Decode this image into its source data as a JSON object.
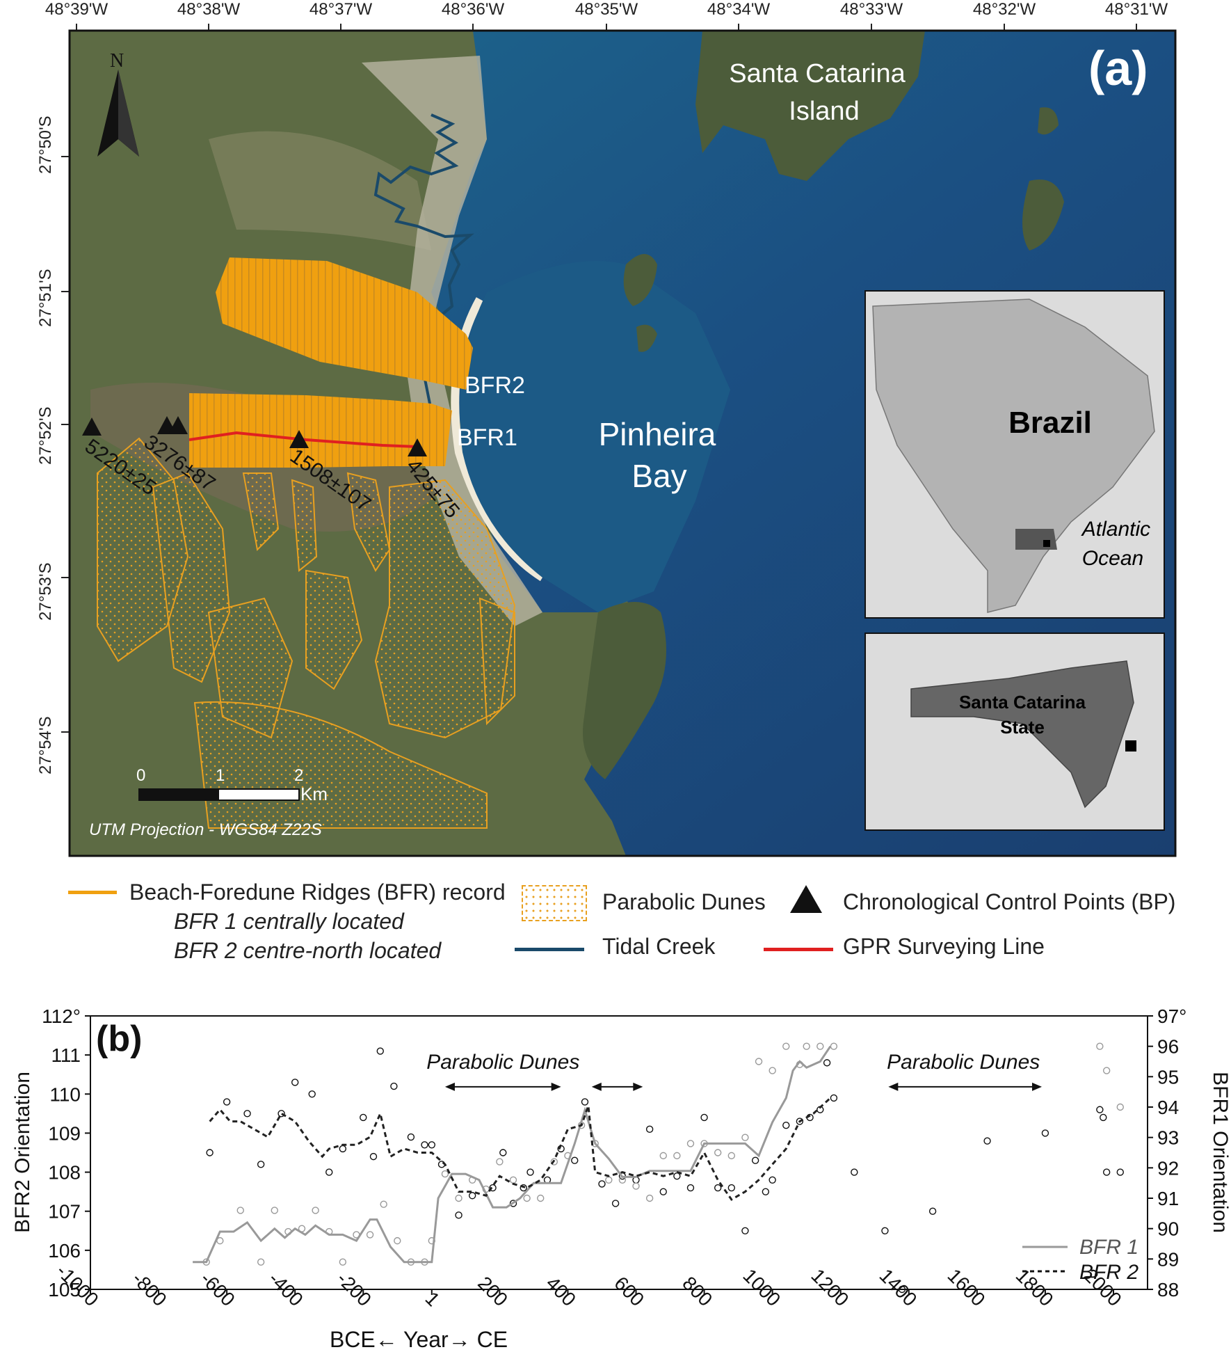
{
  "map": {
    "panel_label": "(a)",
    "lon_ticks": [
      "48°39'W",
      "48°38'W",
      "48°37'W",
      "48°36'W",
      "48°35'W",
      "48°34'W",
      "48°33'W",
      "48°32'W",
      "48°31'W"
    ],
    "lat_ticks": [
      "27°50'S",
      "27°51'S",
      "27°52'S",
      "27°53'S",
      "27°54'S"
    ],
    "north_label": "N",
    "place_labels": {
      "island_line1": "Santa Catarina",
      "island_line2": "Island",
      "bay_line1": "Pinheira",
      "bay_line2": "Bay",
      "bfr2": "BFR2",
      "bfr1": "BFR1"
    },
    "control_points": [
      "5220±25",
      "3276±87",
      "1508±107",
      "425±75"
    ],
    "scale": {
      "ticks": [
        "0",
        "1",
        "2"
      ],
      "unit": "Km"
    },
    "projection": "UTM Projection - WGS84 Z22S",
    "inset_brazil": {
      "country": "Brazil",
      "ocean_line1": "Atlantic",
      "ocean_line2": "Ocean"
    },
    "inset_state": {
      "line1": "Santa Catarina",
      "line2": "State"
    },
    "colors": {
      "ridges": "#f0a010",
      "creek": "#1a4a6a",
      "gpr": "#e02020",
      "sea": "#1d4f80"
    }
  },
  "legend": {
    "bfr_record": "Beach-Foredune Ridges (BFR) record",
    "bfr1_note": "BFR 1 centrally located",
    "bfr2_note": "BFR 2 centre-north located",
    "parabolic": "Parabolic Dunes",
    "tidal": "Tidal Creek",
    "control": "Chronological Control Points (BP)",
    "gpr": "GPR Surveying Line"
  },
  "chart_data": {
    "type": "line",
    "panel_label": "(b)",
    "xlabel": "BCE← Year→ CE",
    "ylabel_left": "BFR2 Orientation",
    "ylabel_right": "BFR1 Orientation",
    "x_ticks": [
      "-1000",
      "-800",
      "-600",
      "-400",
      "-200",
      "1",
      "200",
      "400",
      "600",
      "800",
      "1000",
      "1200",
      "1400",
      "1600",
      "1800",
      "2000"
    ],
    "y_left_ticks": [
      "105",
      "106",
      "107",
      "108",
      "109",
      "110",
      "111",
      "112°"
    ],
    "y_right_ticks": [
      "88",
      "89",
      "90",
      "91",
      "92",
      "93",
      "94",
      "95",
      "96",
      "97°"
    ],
    "xlim": [
      -1000,
      2100
    ],
    "ylim_left": [
      105,
      112
    ],
    "ylim_right": [
      88,
      97
    ],
    "annotations": [
      {
        "text": "Parabolic Dunes",
        "x": 210,
        "x_from": 40,
        "x_to": 380,
        "y": 110.4
      },
      {
        "text": "Parabolic Dunes",
        "x": 1560,
        "x_from": 1340,
        "x_to": 1790,
        "y": 110.4
      }
    ],
    "arrow2": {
      "x_from": 470,
      "x_to": 620,
      "y": 110.4
    },
    "series": [
      {
        "name": "BFR 1",
        "axis": "right",
        "style": "solid",
        "color": "#999999",
        "x": [
          -700,
          -660,
          -620,
          -580,
          -540,
          -500,
          -460,
          -430,
          -400,
          -370,
          -340,
          -300,
          -260,
          -220,
          -180,
          -160,
          -120,
          -80,
          -40,
          1,
          20,
          60,
          100,
          140,
          180,
          220,
          260,
          300,
          340,
          380,
          420,
          450,
          480,
          520,
          560,
          600,
          640,
          680,
          720,
          760,
          800,
          840,
          880,
          920,
          960,
          1000,
          1040,
          1060,
          1080,
          1100,
          1140,
          1170
        ],
        "y": [
          88.9,
          88.9,
          89.9,
          89.9,
          90.2,
          89.6,
          90.0,
          89.7,
          90.0,
          89.8,
          90.1,
          89.8,
          89.8,
          89.6,
          90.3,
          90.3,
          89.4,
          88.9,
          88.9,
          88.9,
          91.0,
          91.8,
          91.8,
          91.6,
          90.7,
          90.7,
          91.0,
          91.5,
          91.5,
          91.5,
          92.8,
          93.9,
          92.8,
          92.3,
          91.7,
          91.7,
          91.9,
          91.9,
          91.9,
          91.9,
          92.8,
          92.8,
          92.8,
          92.8,
          92.4,
          93.5,
          94.3,
          95.2,
          95.5,
          95.3,
          95.5,
          96.0
        ]
      },
      {
        "name": "BFR 2",
        "axis": "left",
        "style": "dashed",
        "color": "#222222",
        "x": [
          -650,
          -620,
          -590,
          -560,
          -520,
          -480,
          -440,
          -400,
          -360,
          -320,
          -300,
          -260,
          -220,
          -180,
          -150,
          -120,
          -80,
          -40,
          1,
          40,
          80,
          120,
          160,
          200,
          240,
          280,
          320,
          360,
          400,
          440,
          460,
          480,
          520,
          560,
          600,
          640,
          680,
          720,
          760,
          800,
          840,
          880,
          920,
          960,
          1000,
          1040,
          1080,
          1120,
          1170
        ],
        "y": [
          109.3,
          109.6,
          109.3,
          109.3,
          109.1,
          108.9,
          109.5,
          109.3,
          108.8,
          108.4,
          108.6,
          108.7,
          108.7,
          108.9,
          109.5,
          108.4,
          108.6,
          108.5,
          108.5,
          108.2,
          107.5,
          107.5,
          107.4,
          107.9,
          107.7,
          107.6,
          107.8,
          108.3,
          109.1,
          109.2,
          109.7,
          108.0,
          107.9,
          108.0,
          107.9,
          108.0,
          107.9,
          108.0,
          107.9,
          108.5,
          107.8,
          107.3,
          107.5,
          107.8,
          108.2,
          108.6,
          109.3,
          109.5,
          109.9
        ]
      }
    ],
    "scatter_bfr2": {
      "axis": "left",
      "x": [
        -650,
        -600,
        -540,
        -500,
        -440,
        -400,
        -350,
        -300,
        -260,
        -200,
        -170,
        -150,
        -110,
        -60,
        -20,
        1,
        30,
        80,
        120,
        180,
        210,
        240,
        270,
        290,
        340,
        380,
        420,
        450,
        500,
        540,
        560,
        600,
        640,
        680,
        720,
        760,
        800,
        840,
        880,
        920,
        950,
        980,
        1000,
        1040,
        1080,
        1110,
        1140,
        1160,
        1180,
        1240,
        1330,
        1470,
        1630,
        1800,
        1960,
        1970,
        1980,
        2020,
        1380
      ],
      "y": [
        108.5,
        109.8,
        109.5,
        108.2,
        109.5,
        110.3,
        110.0,
        108.0,
        108.6,
        109.4,
        108.4,
        111.1,
        110.2,
        108.9,
        108.7,
        108.7,
        108.2,
        106.9,
        107.4,
        107.6,
        108.5,
        107.2,
        107.6,
        108.0,
        107.8,
        108.6,
        108.3,
        109.8,
        107.7,
        107.2,
        107.9,
        107.8,
        109.1,
        107.5,
        107.9,
        107.6,
        109.4,
        107.6,
        107.6,
        106.5,
        108.3,
        107.5,
        107.8,
        109.2,
        109.3,
        109.4,
        109.6,
        110.8,
        109.9,
        108.0,
        106.5,
        107.0,
        108.8,
        109.0,
        109.6,
        109.4,
        108.0,
        108.0,
        105.0
      ]
    },
    "scatter_bfr1": {
      "axis": "right",
      "x": [
        -660,
        -620,
        -560,
        -500,
        -460,
        -420,
        -380,
        -340,
        -300,
        -260,
        -220,
        -180,
        -140,
        -100,
        -60,
        -20,
        1,
        40,
        80,
        120,
        160,
        200,
        240,
        280,
        320,
        360,
        400,
        440,
        480,
        520,
        560,
        600,
        640,
        680,
        720,
        760,
        800,
        840,
        880,
        920,
        960,
        1000,
        1040,
        1080,
        1100,
        1140,
        1180,
        1960,
        1980,
        2020
      ],
      "y": [
        88.9,
        89.6,
        90.6,
        88.9,
        90.6,
        89.9,
        90.0,
        90.6,
        89.9,
        88.9,
        89.8,
        89.8,
        90.8,
        89.6,
        88.9,
        88.9,
        89.6,
        91.8,
        91.0,
        91.6,
        91.3,
        92.2,
        91.6,
        91.0,
        91.0,
        92.2,
        92.4,
        93.4,
        92.8,
        91.6,
        91.6,
        91.4,
        91.0,
        92.4,
        92.4,
        92.8,
        92.8,
        92.5,
        92.4,
        93.0,
        95.5,
        95.2,
        96.0,
        95.4,
        96.0,
        96.0,
        96.0,
        96.0,
        95.2,
        94.0
      ]
    }
  }
}
